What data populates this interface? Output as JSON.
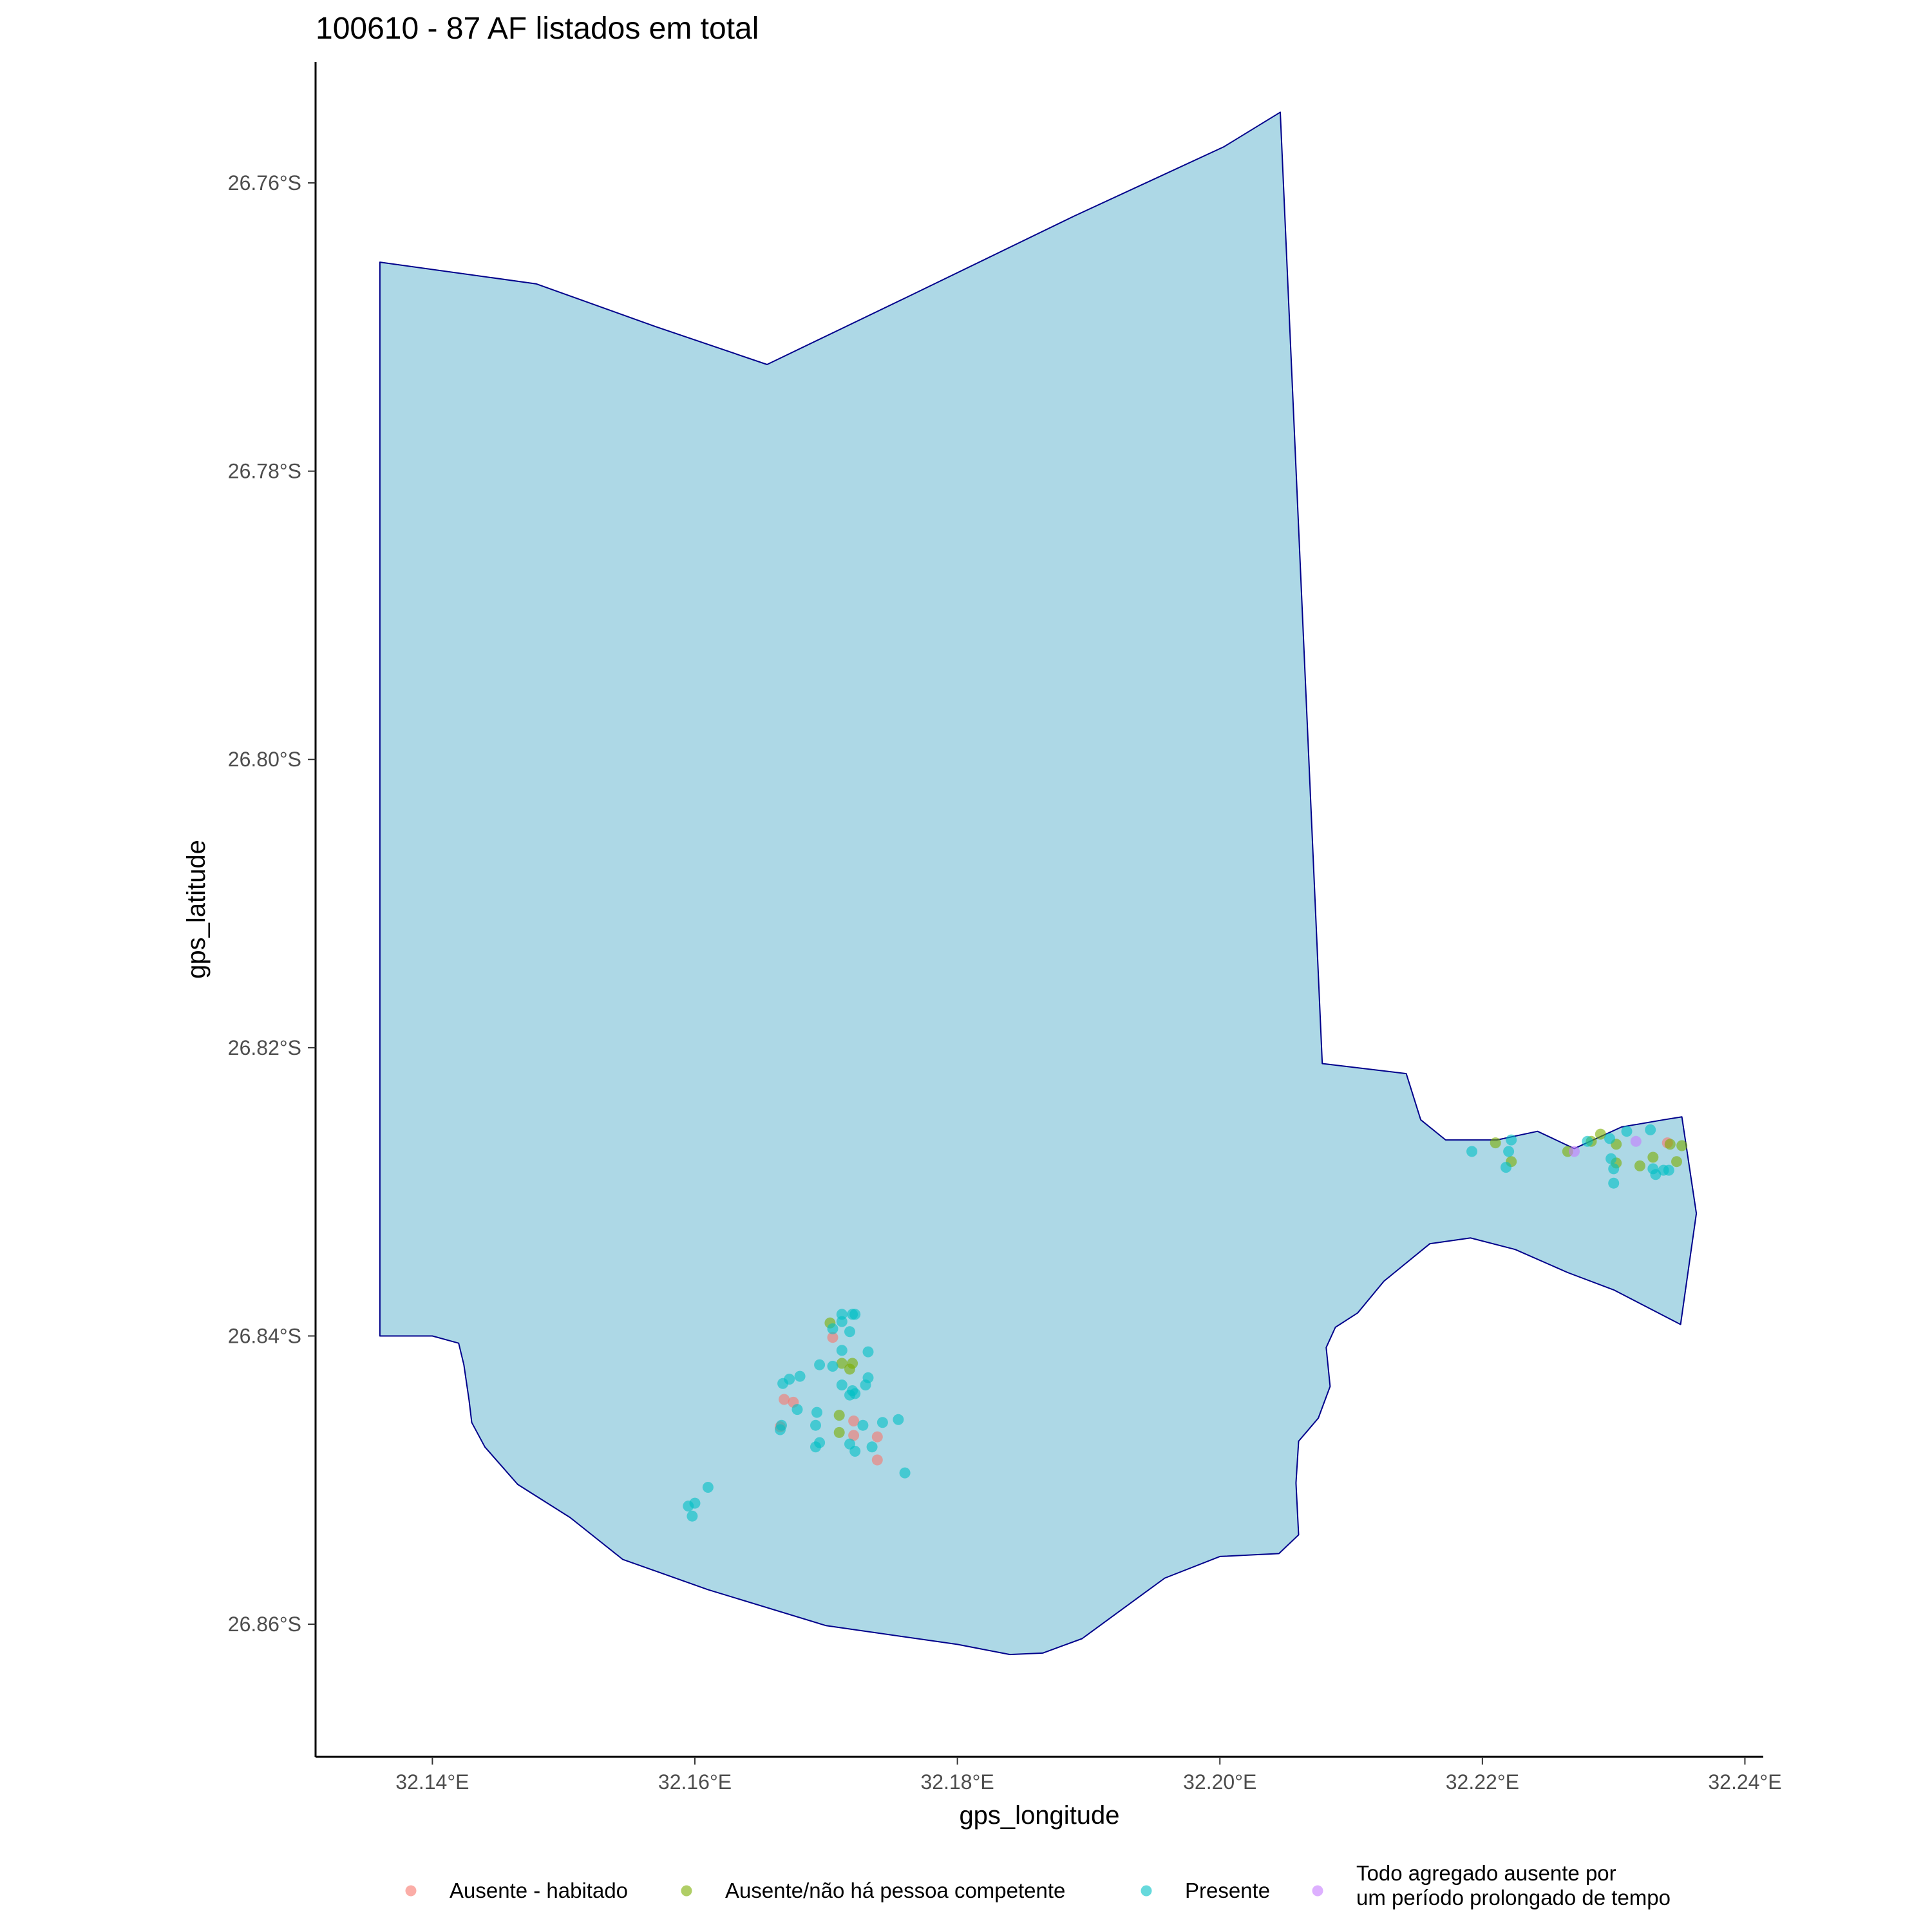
{
  "title": "100610 - 87 AF listados em total",
  "axes": {
    "x_title": "gps_longitude",
    "y_title": "gps_latitude",
    "x_ticks": [
      {
        "value": 32.14,
        "label": "32.14°E"
      },
      {
        "value": 32.16,
        "label": "32.16°E"
      },
      {
        "value": 32.18,
        "label": "32.18°E"
      },
      {
        "value": 32.2,
        "label": "32.20°E"
      },
      {
        "value": 32.22,
        "label": "32.22°E"
      },
      {
        "value": 32.24,
        "label": "32.24°E"
      }
    ],
    "y_ticks": [
      {
        "value": -26.76,
        "label": "26.76°S"
      },
      {
        "value": -26.78,
        "label": "26.78°S"
      },
      {
        "value": -26.8,
        "label": "26.80°S"
      },
      {
        "value": -26.82,
        "label": "26.82°S"
      },
      {
        "value": -26.84,
        "label": "26.84°S"
      },
      {
        "value": -26.86,
        "label": "26.86°S"
      }
    ],
    "x_range": [
      32.1311,
      32.2414
    ],
    "y_range": [
      -26.8692,
      -26.7516
    ]
  },
  "colors": {
    "region_fill": "#add8e6",
    "region_stroke": "#00008b",
    "axis": "#000000"
  },
  "legend": [
    {
      "key": "ausente_habitado",
      "lines": [
        "Ausente - habitado"
      ],
      "color": "#f8766d"
    },
    {
      "key": "ausente_sem_pessoa",
      "lines": [
        "Ausente/não há pessoa competente"
      ],
      "color": "#7cae00"
    },
    {
      "key": "presente",
      "lines": [
        "Presente"
      ],
      "color": "#00bfc4"
    },
    {
      "key": "todo_ausente",
      "lines": [
        "Todo agregado ausente por",
        "um período prolongado de tempo"
      ],
      "color": "#c77cff"
    }
  ],
  "chart_data": {
    "type": "scatter",
    "title": "100610 - 87 AF listados em total",
    "xlabel": "gps_longitude",
    "ylabel": "gps_latitude",
    "xlim": [
      32.1311,
      32.2414
    ],
    "ylim": [
      -26.8692,
      -26.7516
    ],
    "grid": false,
    "legend_position": "bottom",
    "boundary": [
      [
        32.136,
        -26.7655
      ],
      [
        32.1479,
        -26.767
      ],
      [
        32.1571,
        -26.77
      ],
      [
        32.1655,
        -26.7726
      ],
      [
        32.176,
        -26.768
      ],
      [
        32.1889,
        -26.7623
      ],
      [
        32.2003,
        -26.7575
      ],
      [
        32.2046,
        -26.7551
      ],
      [
        32.2078,
        -26.8211
      ],
      [
        32.2142,
        -26.8218
      ],
      [
        32.2153,
        -26.825
      ],
      [
        32.2172,
        -26.8264
      ],
      [
        32.2211,
        -26.8264
      ],
      [
        32.2242,
        -26.8258
      ],
      [
        32.227,
        -26.827
      ],
      [
        32.2306,
        -26.8255
      ],
      [
        32.2338,
        -26.825
      ],
      [
        32.2352,
        -26.8248
      ],
      [
        32.2363,
        -26.8315
      ],
      [
        32.2351,
        -26.8392
      ],
      [
        32.23,
        -26.8368
      ],
      [
        32.2265,
        -26.8356
      ],
      [
        32.2225,
        -26.834
      ],
      [
        32.2191,
        -26.8332
      ],
      [
        32.216,
        -26.8336
      ],
      [
        32.2125,
        -26.8362
      ],
      [
        32.2105,
        -26.8384
      ],
      [
        32.2088,
        -26.8394
      ],
      [
        32.2081,
        -26.8408
      ],
      [
        32.2084,
        -26.8435
      ],
      [
        32.2075,
        -26.8457
      ],
      [
        32.206,
        -26.8473
      ],
      [
        32.2058,
        -26.8502
      ],
      [
        32.206,
        -26.8538
      ],
      [
        32.2045,
        -26.8551
      ],
      [
        32.2,
        -26.8553
      ],
      [
        32.1958,
        -26.8568
      ],
      [
        32.1928,
        -26.8588
      ],
      [
        32.1895,
        -26.861
      ],
      [
        32.1865,
        -26.862
      ],
      [
        32.184,
        -26.8621
      ],
      [
        32.18,
        -26.8614
      ],
      [
        32.17,
        -26.8601
      ],
      [
        32.161,
        -26.8576
      ],
      [
        32.1545,
        -26.8555
      ],
      [
        32.1505,
        -26.8526
      ],
      [
        32.1465,
        -26.8503
      ],
      [
        32.144,
        -26.8477
      ],
      [
        32.143,
        -26.846
      ],
      [
        32.1428,
        -26.8445
      ],
      [
        32.1424,
        -26.842
      ],
      [
        32.142,
        -26.8405
      ],
      [
        32.14,
        -26.84
      ],
      [
        32.137,
        -26.84
      ],
      [
        32.136,
        -26.84
      ]
    ],
    "series": [
      {
        "name": "Ausente - habitado",
        "points": [
          [
            32.1705,
            -26.8401
          ],
          [
            32.1668,
            -26.8444
          ],
          [
            32.1675,
            -26.8446
          ],
          [
            32.1665,
            -26.8463
          ],
          [
            32.1721,
            -26.8459
          ],
          [
            32.1721,
            -26.8469
          ],
          [
            32.1739,
            -26.847
          ],
          [
            32.1739,
            -26.8486
          ],
          [
            32.2341,
            -26.8266
          ]
        ]
      },
      {
        "name": "Ausente/não há pessoa competente",
        "points": [
          [
            32.1703,
            -26.8391
          ],
          [
            32.1712,
            -26.8419
          ],
          [
            32.1718,
            -26.8423
          ],
          [
            32.172,
            -26.8419
          ],
          [
            32.171,
            -26.8455
          ],
          [
            32.171,
            -26.8467
          ],
          [
            32.221,
            -26.8266
          ],
          [
            32.2222,
            -26.8279
          ],
          [
            32.2265,
            -26.8272
          ],
          [
            32.2283,
            -26.8265
          ],
          [
            32.229,
            -26.826
          ],
          [
            32.2302,
            -26.8267
          ],
          [
            32.2302,
            -26.828
          ],
          [
            32.232,
            -26.8282
          ],
          [
            32.233,
            -26.8276
          ],
          [
            32.2343,
            -26.8267
          ],
          [
            32.2348,
            -26.8279
          ],
          [
            32.2352,
            -26.8268
          ]
        ]
      },
      {
        "name": "Presente",
        "points": [
          [
            32.1712,
            -26.8385
          ],
          [
            32.172,
            -26.8385
          ],
          [
            32.1722,
            -26.8385
          ],
          [
            32.1712,
            -26.839
          ],
          [
            32.1705,
            -26.8395
          ],
          [
            32.1718,
            -26.8397
          ],
          [
            32.1712,
            -26.841
          ],
          [
            32.1732,
            -26.8411
          ],
          [
            32.1695,
            -26.842
          ],
          [
            32.1705,
            -26.8421
          ],
          [
            32.168,
            -26.8428
          ],
          [
            32.1672,
            -26.843
          ],
          [
            32.1667,
            -26.8433
          ],
          [
            32.1732,
            -26.8429
          ],
          [
            32.1712,
            -26.8434
          ],
          [
            32.172,
            -26.8438
          ],
          [
            32.173,
            -26.8434
          ],
          [
            32.1722,
            -26.844
          ],
          [
            32.1718,
            -26.8441
          ],
          [
            32.1678,
            -26.8451
          ],
          [
            32.1693,
            -26.8453
          ],
          [
            32.1666,
            -26.8462
          ],
          [
            32.1692,
            -26.8462
          ],
          [
            32.1665,
            -26.8465
          ],
          [
            32.1728,
            -26.8462
          ],
          [
            32.1743,
            -26.846
          ],
          [
            32.1755,
            -26.8458
          ],
          [
            32.1695,
            -26.8474
          ],
          [
            32.1692,
            -26.8477
          ],
          [
            32.1718,
            -26.8475
          ],
          [
            32.1735,
            -26.8477
          ],
          [
            32.1722,
            -26.848
          ],
          [
            32.176,
            -26.8495
          ],
          [
            32.161,
            -26.8505
          ],
          [
            32.16,
            -26.8516
          ],
          [
            32.1595,
            -26.8518
          ],
          [
            32.1598,
            -26.8525
          ],
          [
            32.2192,
            -26.8272
          ],
          [
            32.2222,
            -26.8264
          ],
          [
            32.222,
            -26.8272
          ],
          [
            32.2218,
            -26.8283
          ],
          [
            32.228,
            -26.8265
          ],
          [
            32.2297,
            -26.8263
          ],
          [
            32.231,
            -26.8258
          ],
          [
            32.2328,
            -26.8257
          ],
          [
            32.2298,
            -26.8277
          ],
          [
            32.23,
            -26.8284
          ],
          [
            32.23,
            -26.8294
          ],
          [
            32.233,
            -26.8284
          ],
          [
            32.2332,
            -26.8288
          ],
          [
            32.2338,
            -26.8285
          ],
          [
            32.2342,
            -26.8285
          ]
        ]
      },
      {
        "name": "Todo agregado ausente por um período prolongado de tempo",
        "points": [
          [
            32.227,
            -26.8272
          ],
          [
            32.2317,
            -26.8265
          ]
        ]
      }
    ]
  }
}
